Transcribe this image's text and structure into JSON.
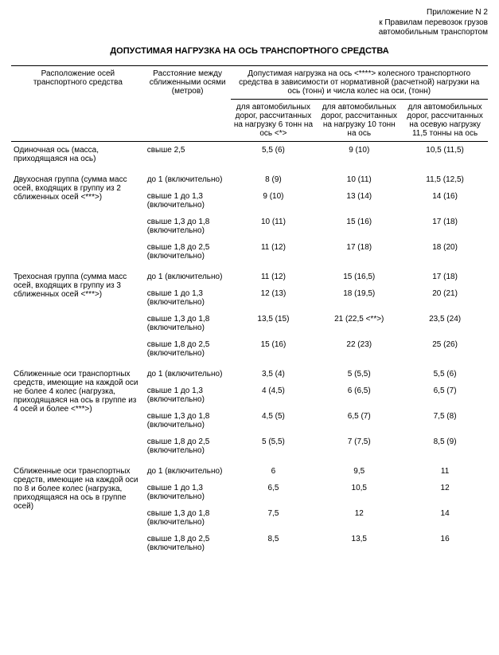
{
  "annex": {
    "line1": "Приложение N 2",
    "line2": "к Правилам перевозок грузов",
    "line3": "автомобильным транспортом"
  },
  "title": "ДОПУСТИМАЯ НАГРУЗКА НА ОСЬ ТРАНСПОРТНОГО СРЕДСТВА",
  "header": {
    "col_axle": "Расположение осей транспортного средства",
    "col_dist": "Расстояние между сближенными осями (метров)",
    "col_load_group": "Допустимая нагрузка на ось <****> колесного транспортного средства в зависимости от нормативной (расчетной) нагрузки на ось (тонн) и числа колес на оси, (тонн)",
    "col_l6": "для автомобильных дорог, рассчитанных на нагрузку 6 тонн на ось <*>",
    "col_l10": "для автомобильных дорог, рассчитанных на нагрузку 10 тонн на ось",
    "col_l115": "для автомобильных дорог, рассчитанных на осевую нагрузку 11,5 тонны на ось"
  },
  "sections": [
    {
      "label": "Одиночная ось (масса, приходящаяся на ось)",
      "rows": [
        {
          "dist": "свыше 2,5",
          "v6": "5,5 (6)",
          "v10": "9 (10)",
          "v115": "10,5 (11,5)"
        }
      ]
    },
    {
      "label": "Двухосная группа (сумма масс осей, входящих в группу из 2 сближенных осей <***>)",
      "rows": [
        {
          "dist": "до 1 (включительно)",
          "v6": "8 (9)",
          "v10": "10 (11)",
          "v115": "11,5 (12,5)"
        },
        {
          "dist": "свыше 1 до 1,3 (включительно)",
          "v6": "9 (10)",
          "v10": "13 (14)",
          "v115": "14 (16)"
        },
        {
          "dist": "свыше 1,3 до 1,8 (включительно)",
          "v6": "10 (11)",
          "v10": "15 (16)",
          "v115": "17 (18)"
        },
        {
          "dist": "свыше 1,8 до 2,5 (включительно)",
          "v6": "11 (12)",
          "v10": "17 (18)",
          "v115": "18 (20)"
        }
      ]
    },
    {
      "label": "Трехосная группа (сумма масс осей, входящих в группу из 3 сближенных осей <***>)",
      "rows": [
        {
          "dist": "до 1 (включительно)",
          "v6": "11 (12)",
          "v10": "15 (16,5)",
          "v115": "17 (18)"
        },
        {
          "dist": "свыше 1 до 1,3 (включительно)",
          "v6": "12 (13)",
          "v10": "18 (19,5)",
          "v115": "20 (21)"
        },
        {
          "dist": "свыше 1,3 до 1,8 (включительно)",
          "v6": "13,5 (15)",
          "v10": "21 (22,5 <**>)",
          "v115": "23,5 (24)"
        },
        {
          "dist": "свыше 1,8 до 2,5 (включительно)",
          "v6": "15 (16)",
          "v10": "22 (23)",
          "v115": "25 (26)"
        }
      ]
    },
    {
      "label": "Сближенные оси транспортных средств, имеющие на каждой оси не более 4 колес (нагрузка, приходящаяся на ось в группе из 4 осей и более <***>)",
      "rows": [
        {
          "dist": "до 1 (включительно)",
          "v6": "3,5 (4)",
          "v10": "5 (5,5)",
          "v115": "5,5 (6)"
        },
        {
          "dist": "свыше 1 до 1,3 (включительно)",
          "v6": "4 (4,5)",
          "v10": "6 (6,5)",
          "v115": "6,5 (7)"
        },
        {
          "dist": "свыше 1,3 до 1,8 (включительно)",
          "v6": "4,5 (5)",
          "v10": "6,5 (7)",
          "v115": "7,5 (8)"
        },
        {
          "dist": "свыше 1,8 до 2,5 (включительно)",
          "v6": "5 (5,5)",
          "v10": "7 (7,5)",
          "v115": "8,5 (9)"
        }
      ]
    },
    {
      "label": "Сближенные оси транспортных средств, имеющие на каждой оси по 8 и более колес (нагрузка, приходящаяся на ось в группе осей)",
      "rows": [
        {
          "dist": "до 1 (включительно)",
          "v6": "6",
          "v10": "9,5",
          "v115": "11"
        },
        {
          "dist": "свыше 1 до 1,3 (включительно)",
          "v6": "6,5",
          "v10": "10,5",
          "v115": "12"
        },
        {
          "dist": "свыше 1,3 до 1,8 (включительно)",
          "v6": "7,5",
          "v10": "12",
          "v115": "14"
        },
        {
          "dist": "свыше 1,8 до 2,5 (включительно)",
          "v6": "8,5",
          "v10": "13,5",
          "v115": "16"
        }
      ]
    }
  ]
}
